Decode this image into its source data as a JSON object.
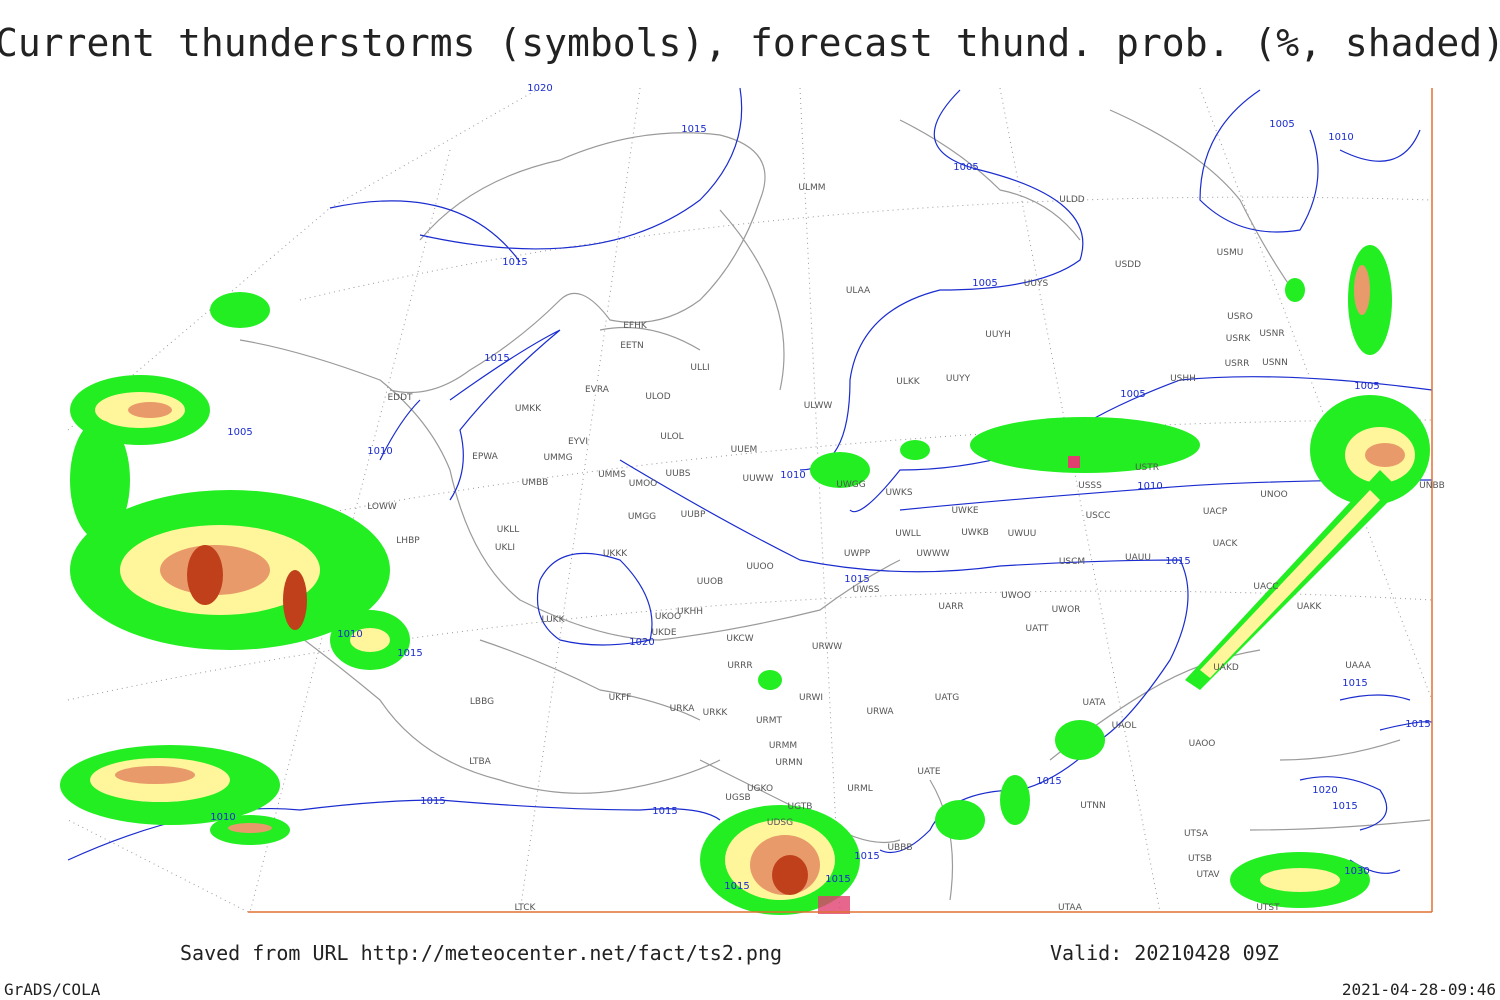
{
  "header": {
    "title": "Current thunderstorms (symbols), forecast thund. prob. (%, shaded)"
  },
  "footer": {
    "source": "Saved from URL  http://meteocenter.net/fact/ts2.png",
    "valid": "Valid: 20210428 09Z",
    "software": "GrADS/COLA",
    "timestamp": "2021-04-28-09:46"
  },
  "map": {
    "stations": [
      "EFHK",
      "EETN",
      "ULLI",
      "ULMM",
      "ULAA",
      "ULDD",
      "UUYS",
      "USDD",
      "USMU",
      "USRO",
      "USRK",
      "USNR",
      "USRR",
      "USNN",
      "UUYH",
      "UUYY",
      "ULKK",
      "ULWW",
      "USHH",
      "ULOD",
      "ULOL",
      "EVRA",
      "UMKK",
      "EYVI",
      "UMMG",
      "EPWA",
      "UMMS",
      "UMOO",
      "UUBS",
      "UUEM",
      "UUWW",
      "UWGG",
      "UWKS",
      "UWKE",
      "UWKB",
      "UWUU",
      "USCC",
      "USSS",
      "USTR",
      "UNOO",
      "UACP",
      "UACK",
      "UNBB",
      "UMBB",
      "EDDT",
      "LOWW",
      "LHBP",
      "UKLL",
      "UKLI",
      "UMGG",
      "UUBP",
      "UKKK",
      "UUOO",
      "UWPP",
      "UWWW",
      "UWLL",
      "USCM",
      "UAUU",
      "UUOB",
      "UWSS",
      "UKHH",
      "UKOO",
      "UKDE",
      "UKCW",
      "URWW",
      "UARR",
      "UWOO",
      "UWOR",
      "UATT",
      "URRR",
      "UKFF",
      "URKA",
      "URKK",
      "URWI",
      "URWA",
      "UATG",
      "UATA",
      "UAOL",
      "UAOO",
      "UAKD",
      "UAKK",
      "UACC",
      "UAAA",
      "URMT",
      "URMM",
      "URMN",
      "URML",
      "UATE",
      "UGKO",
      "UGSB",
      "UGTB",
      "UDSG",
      "UBBB",
      "UTSA",
      "UTSB",
      "UTAV",
      "UTAA",
      "UTNN",
      "UTST",
      "LTBA",
      "LBBG",
      "LUKK",
      "LTCK"
    ],
    "isobar_labels": [
      1015,
      1005,
      1005,
      1010,
      1015,
      1015,
      1005,
      1005,
      1005,
      1010,
      1010,
      1005,
      1010,
      1015,
      1015,
      1020,
      1010,
      1015,
      1015,
      1015,
      1010,
      1015,
      1015,
      1015,
      1015,
      1015,
      1015,
      1020,
      1015,
      1030,
      1020
    ]
  }
}
